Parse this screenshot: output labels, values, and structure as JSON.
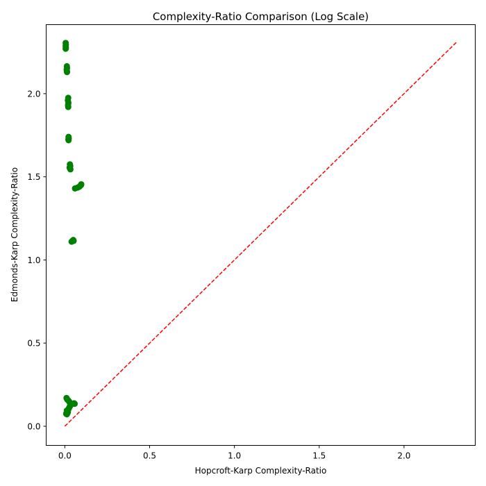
{
  "chart_data": {
    "type": "scatter",
    "title": "Complexity-Ratio Comparison (Log Scale)",
    "xlabel": "Hopcroft-Karp Complexity-Ratio",
    "ylabel": "Edmonds-Karp Complexity-Ratio",
    "xlim": [
      -0.11,
      2.42
    ],
    "ylim": [
      -0.115,
      2.415
    ],
    "xticks": [
      0.0,
      0.5,
      1.0,
      1.5,
      2.0
    ],
    "xtick_labels": [
      "0.0",
      "0.5",
      "1.0",
      "1.5",
      "2.0"
    ],
    "yticks": [
      0.0,
      0.5,
      1.0,
      1.5,
      2.0
    ],
    "ytick_labels": [
      "0.0",
      "0.5",
      "1.0",
      "1.5",
      "2.0"
    ],
    "grid": false,
    "series": [
      {
        "marker_color": "#008000",
        "points": [
          [
            0.005,
            2.305
          ],
          [
            0.006,
            2.295
          ],
          [
            0.005,
            2.285
          ],
          [
            0.006,
            2.275
          ],
          [
            0.005,
            2.27
          ],
          [
            0.012,
            2.165
          ],
          [
            0.013,
            2.155
          ],
          [
            0.011,
            2.145
          ],
          [
            0.012,
            2.135
          ],
          [
            0.013,
            2.13
          ],
          [
            0.02,
            1.975
          ],
          [
            0.018,
            1.96
          ],
          [
            0.021,
            1.945
          ],
          [
            0.019,
            1.93
          ],
          [
            0.02,
            1.92
          ],
          [
            0.022,
            1.74
          ],
          [
            0.023,
            1.73
          ],
          [
            0.021,
            1.725
          ],
          [
            0.022,
            1.72
          ],
          [
            0.03,
            1.575
          ],
          [
            0.032,
            1.565
          ],
          [
            0.028,
            1.555
          ],
          [
            0.031,
            1.55
          ],
          [
            0.033,
            1.545
          ],
          [
            0.06,
            1.43
          ],
          [
            0.075,
            1.435
          ],
          [
            0.085,
            1.44
          ],
          [
            0.09,
            1.445
          ],
          [
            0.095,
            1.45
          ],
          [
            0.097,
            1.455
          ],
          [
            0.04,
            1.11
          ],
          [
            0.045,
            1.115
          ],
          [
            0.05,
            1.12
          ],
          [
            0.052,
            1.115
          ],
          [
            0.01,
            0.17
          ],
          [
            0.012,
            0.165
          ],
          [
            0.015,
            0.16
          ],
          [
            0.02,
            0.155
          ],
          [
            0.025,
            0.15
          ],
          [
            0.03,
            0.14
          ],
          [
            0.035,
            0.135
          ],
          [
            0.045,
            0.135
          ],
          [
            0.055,
            0.138
          ],
          [
            0.058,
            0.135
          ],
          [
            0.012,
            0.095
          ],
          [
            0.015,
            0.09
          ],
          [
            0.02,
            0.1
          ],
          [
            0.025,
            0.11
          ],
          [
            0.018,
            0.085
          ],
          [
            0.01,
            0.08
          ],
          [
            0.008,
            0.075
          ],
          [
            0.012,
            0.072
          ],
          [
            0.015,
            0.078
          ],
          [
            0.03,
            0.12
          ]
        ]
      }
    ],
    "reference_line": {
      "x": [
        0.0,
        2.31
      ],
      "y": [
        0.0,
        2.31
      ],
      "color": "#ff0000",
      "style": "dashed"
    }
  }
}
